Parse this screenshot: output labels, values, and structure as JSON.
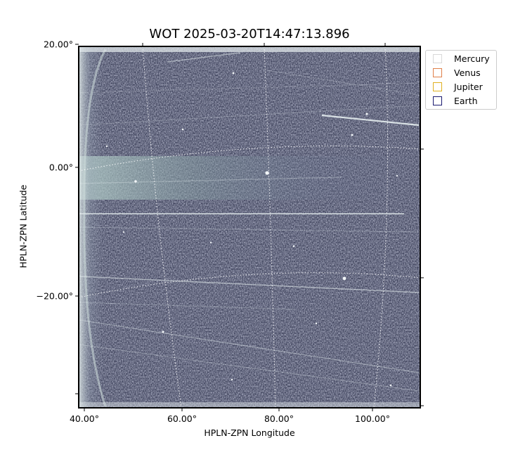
{
  "title": "WOT 2025-03-20T14:47:13.896",
  "x_axis": {
    "label": "HPLN-ZPN Longitude",
    "ticks": [
      "40.00°",
      "60.00°",
      "80.00°",
      "100.00°"
    ]
  },
  "y_axis": {
    "label": "HPLN-ZPN Latitude",
    "ticks": [
      "20.00°",
      "0.00°",
      "−20.00°"
    ]
  },
  "image": {
    "description": "grayscale-bluish heliospheric imager frame with bright horizontal streaks",
    "colormap_colors": [
      "#0f1020",
      "#3a3e5a",
      "#6b7190",
      "#a9c3c0",
      "#e8f0ee"
    ],
    "grid_style": "white dotted coordinate grid",
    "frame_color": "#000000"
  },
  "legend": {
    "placement": "outside upper-right",
    "items": [
      {
        "label": "Mercury",
        "color": "#d9d9d9"
      },
      {
        "label": "Venus",
        "color": "#e0804a"
      },
      {
        "label": "Jupiter",
        "color": "#e0b020"
      },
      {
        "label": "Earth",
        "color": "#1a1a70"
      }
    ]
  }
}
